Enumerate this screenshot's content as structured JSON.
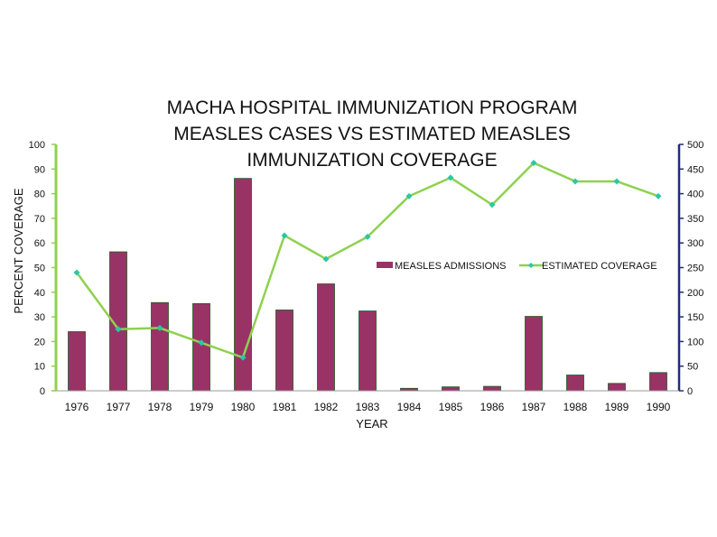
{
  "chart_data": {
    "type": "bar",
    "title_lines": [
      "MACHA HOSPITAL IMMUNIZATION PROGRAM",
      "MEASLES CASES VS ESTIMATED MEASLES",
      "IMMUNIZATION COVERAGE"
    ],
    "xlabel": "YEAR",
    "ylabel": "PERCENT COVERAGE",
    "categories": [
      "1976",
      "1977",
      "1978",
      "1979",
      "1980",
      "1981",
      "1982",
      "1983",
      "1984",
      "1985",
      "1986",
      "1987",
      "1988",
      "1989",
      "1990"
    ],
    "y_left": {
      "min": 0,
      "max": 100,
      "step": 10,
      "ticks": [
        "0",
        "10",
        "20",
        "30",
        "40",
        "50",
        "60",
        "70",
        "80",
        "90",
        "100"
      ]
    },
    "y_right": {
      "min": 0,
      "max": 500,
      "step": 50,
      "ticks": [
        "0",
        "50",
        "100",
        "150",
        "200",
        "250",
        "300",
        "350",
        "400",
        "450",
        "500"
      ]
    },
    "series": [
      {
        "name": "MEASLES ADMISSIONS",
        "type": "bar",
        "axis": "right",
        "color": "#993366",
        "values": [
          120,
          282,
          179,
          177,
          431,
          164,
          217,
          162,
          5,
          8,
          9,
          151,
          32,
          15,
          37
        ]
      },
      {
        "name": "ESTIMATED COVERAGE",
        "type": "line",
        "axis": "left",
        "color": "#8fd14f",
        "marker_color": "#2bc7a6",
        "values": [
          48,
          25,
          25.5,
          19.5,
          13.5,
          63,
          53.5,
          62.5,
          79,
          86.5,
          75.5,
          92.5,
          85,
          85,
          79
        ]
      }
    ],
    "legend_position": "right"
  }
}
